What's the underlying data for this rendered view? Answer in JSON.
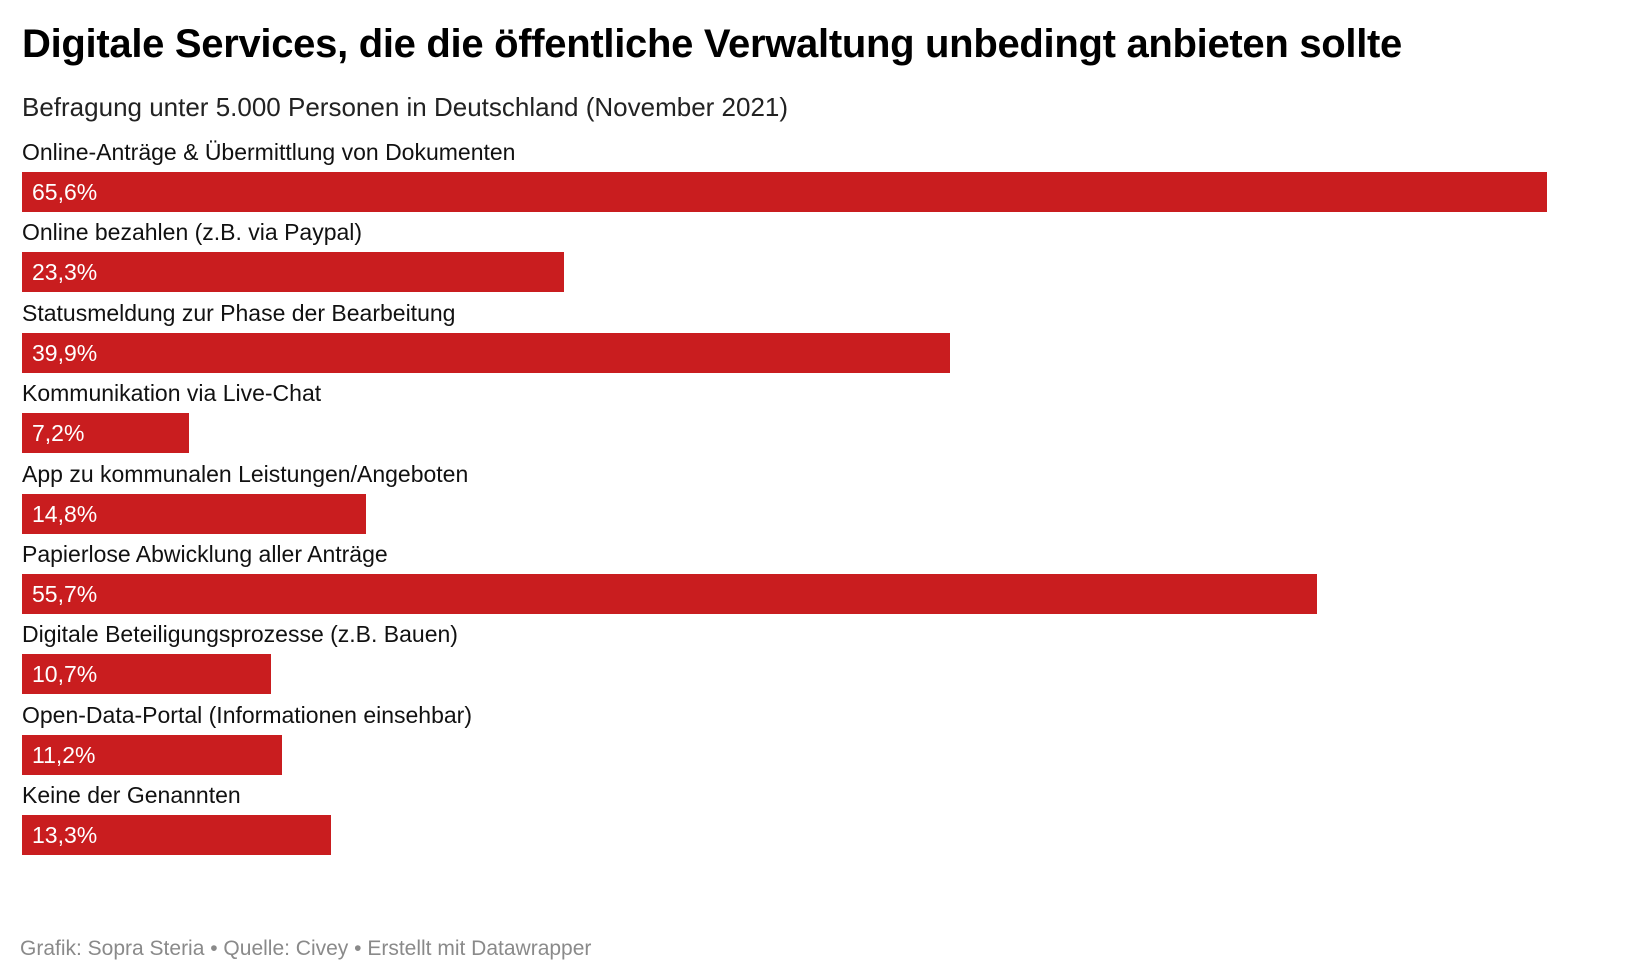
{
  "title": "Digitale Services, die die öffentliche Verwaltung unbedingt anbieten sollte",
  "subtitle": "Befragung unter 5.000 Personen in Deutschland (November 2021)",
  "footer": {
    "text": "Grafik: Sopra Steria • Quelle: Civey • Erstellt mit Datawrapper"
  },
  "colors": {
    "bar": "#c91d1f",
    "bar_text": "#ffffff",
    "footer_text": "#8a8a8a"
  },
  "chart_data": {
    "type": "bar",
    "orientation": "horizontal",
    "title": "Digitale Services, die die öffentliche Verwaltung unbedingt anbieten sollte",
    "subtitle": "Befragung unter 5.000 Personen in Deutschland (November 2021)",
    "categories": [
      "Online-Anträge & Übermittlung von Dokumenten",
      "Online bezahlen (z.B. via Paypal)",
      "Statusmeldung zur Phase der Bearbeitung",
      "Kommunikation via Live-Chat",
      "App zu kommunalen Leistungen/Angeboten",
      "Papierlose Abwicklung aller Anträge",
      "Digitale Beteiligungsprozesse (z.B. Bauen)",
      "Open-Data-Portal (Informationen einsehbar)",
      "Keine der Genannten"
    ],
    "values": [
      65.6,
      23.3,
      39.9,
      7.2,
      14.8,
      55.7,
      10.7,
      11.2,
      13.3
    ],
    "value_labels": [
      "65,6%",
      "23,3%",
      "39,9%",
      "7,2%",
      "14,8%",
      "55,7%",
      "10,7%",
      "11,2%",
      "13,3%"
    ],
    "unit": "%",
    "xlim": [
      0,
      65.6
    ],
    "grid": false,
    "legend": "none"
  }
}
